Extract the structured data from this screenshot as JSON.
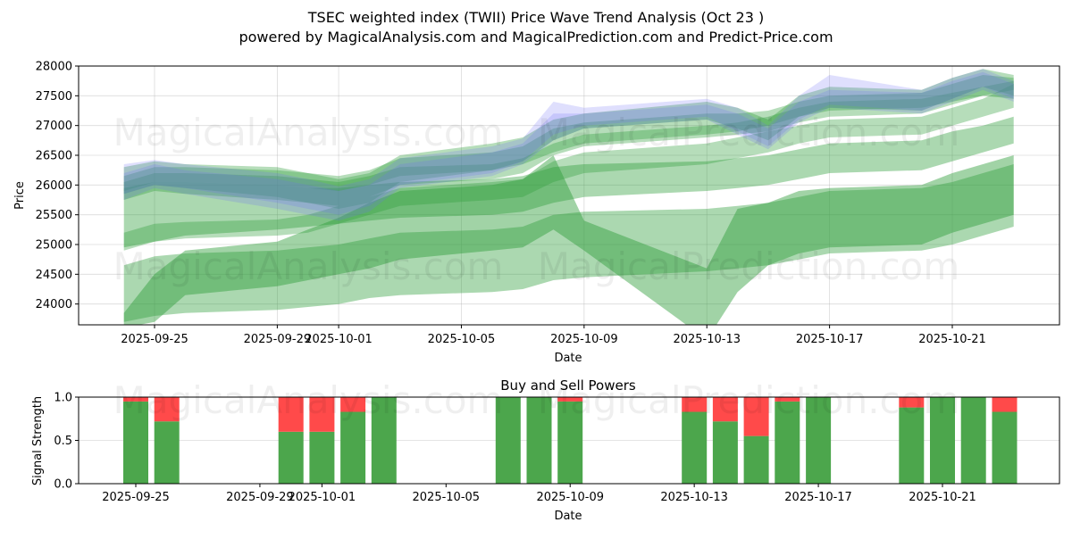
{
  "title_line1": "TSEC weighted index (TWII) Price Wave Trend Analysis (Oct 23 )",
  "title_line2": "powered by MagicalAnalysis.com and MagicalPrediction.com and Predict-Price.com",
  "watermarks": [
    "MagicalAnalysis.com",
    "MagicalPrediction.com"
  ],
  "colors": {
    "band_green": "#2e9e3a",
    "band_blue": "#6e6ef5",
    "buy": "#4ca64c",
    "sell": "#ff4a4a"
  },
  "chart_data": [
    {
      "type": "area",
      "title": "",
      "xlabel": "Date",
      "ylabel": "Price",
      "ylim": [
        23650,
        28000
      ],
      "xlim": [
        "2025-09-23",
        "2025-10-24"
      ],
      "grid": true,
      "yticks": [
        24000,
        24500,
        25000,
        25500,
        26000,
        26500,
        27000,
        27500,
        28000
      ],
      "xticks": [
        "2025-09-25",
        "2025-09-29",
        "2025-10-01",
        "2025-10-05",
        "2025-10-09",
        "2025-10-13",
        "2025-10-17",
        "2025-10-21"
      ],
      "dates": [
        "2025-09-24",
        "2025-09-25",
        "2025-09-26",
        "2025-09-29",
        "2025-09-30",
        "2025-10-01",
        "2025-10-02",
        "2025-10-03",
        "2025-10-06",
        "2025-10-07",
        "2025-10-08",
        "2025-10-09",
        "2025-10-13",
        "2025-10-14",
        "2025-10-15",
        "2025-10-16",
        "2025-10-17",
        "2025-10-20",
        "2025-10-21",
        "2025-10-22",
        "2025-10-23"
      ],
      "blue_bands": [
        {
          "name": "wave-blue-1",
          "upper": [
            26350,
            26420,
            26350,
            26200,
            26100,
            25980,
            26100,
            26450,
            26650,
            26780,
            27400,
            27300,
            27450,
            27300,
            27000,
            27500,
            27850,
            27600,
            27800,
            27950,
            27750
          ],
          "lower": [
            25750,
            25950,
            25850,
            25600,
            25500,
            25400,
            25550,
            25950,
            26150,
            26350,
            26750,
            26950,
            27100,
            26850,
            26600,
            27050,
            27300,
            27200,
            27400,
            27600,
            27400
          ]
        },
        {
          "name": "wave-blue-2",
          "upper": [
            26200,
            26350,
            26250,
            26100,
            26000,
            25900,
            26000,
            26350,
            26550,
            26700,
            27200,
            27200,
            27350,
            27200,
            26950,
            27400,
            27600,
            27550,
            27750,
            27900,
            27700
          ],
          "lower": [
            25850,
            26000,
            25950,
            25700,
            25600,
            25500,
            25650,
            26000,
            26200,
            26400,
            26850,
            27000,
            27150,
            26900,
            26650,
            27100,
            27350,
            27250,
            27450,
            27650,
            27450
          ]
        }
      ],
      "green_bands": [
        {
          "name": "wave-green-1",
          "upper": [
            26300,
            26400,
            26350,
            26300,
            26200,
            26100,
            26200,
            26500,
            26700,
            26800,
            27100,
            27200,
            27400,
            27300,
            27100,
            27500,
            27650,
            27600,
            27800,
            27950,
            27850
          ],
          "lower": [
            25850,
            26000,
            25950,
            25800,
            25700,
            25600,
            25700,
            26050,
            26250,
            26400,
            26750,
            26950,
            27100,
            26950,
            26750,
            27150,
            27300,
            27250,
            27450,
            27650,
            27500
          ]
        },
        {
          "name": "wave-green-2",
          "upper": [
            26150,
            26300,
            26300,
            26250,
            26200,
            26150,
            26250,
            26450,
            26550,
            26650,
            26950,
            27050,
            27200,
            27200,
            27250,
            27400,
            27500,
            27550,
            27700,
            27850,
            27800
          ],
          "lower": [
            25750,
            25900,
            25850,
            25750,
            25700,
            25650,
            25800,
            26000,
            26100,
            26200,
            26500,
            26650,
            26800,
            26850,
            26900,
            27050,
            27150,
            27200,
            27350,
            27500,
            27450
          ]
        },
        {
          "name": "wave-green-3",
          "upper": [
            26050,
            26200,
            26200,
            26150,
            26100,
            26050,
            26150,
            26300,
            26350,
            26450,
            26700,
            26850,
            27000,
            27050,
            27150,
            27300,
            27400,
            27450,
            27550,
            27650,
            27750
          ],
          "lower": [
            25900,
            26050,
            26050,
            26000,
            25950,
            25900,
            26000,
            26150,
            26250,
            26350,
            26550,
            26700,
            26850,
            26900,
            27000,
            27150,
            27250,
            27300,
            27400,
            27500,
            27600
          ]
        },
        {
          "name": "wave-green-4",
          "upper": [
            25200,
            25350,
            25380,
            25420,
            25500,
            25650,
            25800,
            25950,
            26050,
            26100,
            26400,
            26550,
            26700,
            26800,
            26900,
            27000,
            27100,
            27150,
            27300,
            27450,
            27700
          ],
          "lower": [
            24900,
            25050,
            25100,
            25150,
            25200,
            25350,
            25500,
            25650,
            25750,
            25800,
            26050,
            26200,
            26350,
            26450,
            26550,
            26700,
            26800,
            26850,
            27000,
            27150,
            27300
          ]
        },
        {
          "name": "wave-green-5",
          "upper": [
            25950,
            26050,
            26050,
            26000,
            25950,
            25950,
            26000,
            26050,
            26100,
            26150,
            26300,
            26350,
            26400,
            26450,
            26500,
            26600,
            26700,
            26750,
            26900,
            27000,
            27150
          ],
          "lower": [
            24950,
            25050,
            25150,
            25250,
            25300,
            25350,
            25400,
            25450,
            25500,
            25550,
            25700,
            25800,
            25900,
            25950,
            26000,
            26100,
            26200,
            26250,
            26400,
            26550,
            26700
          ]
        },
        {
          "name": "wave-green-6",
          "upper": [
            24650,
            24800,
            24850,
            24900,
            24950,
            25000,
            25100,
            25200,
            25250,
            25300,
            25500,
            25550,
            25600,
            25650,
            25700,
            25800,
            25900,
            25950,
            26050,
            26200,
            26350
          ]
        },
        {
          "name": "wave-green-7",
          "upper": [
            24650,
            24800,
            24850,
            24900,
            24950,
            25000,
            25100,
            25200,
            25250,
            25300,
            25500,
            25550,
            25600,
            25650,
            25700,
            25800,
            25900,
            25950,
            26050,
            26200,
            26350
          ],
          "lower": [
            23700,
            23800,
            23850,
            23900,
            23950,
            24000,
            24100,
            24150,
            24200,
            24250,
            24400,
            24450,
            24550,
            24600,
            24650,
            24750,
            24850,
            24900,
            25000,
            25150,
            25300
          ]
        },
        {
          "name": "wave-green-8",
          "upper": [
            23850,
            24500,
            24900,
            25050,
            25250,
            25450,
            25700,
            25900,
            26000,
            26100,
            26500,
            25400,
            24600,
            25600,
            25700,
            25900,
            25950,
            26000,
            26200,
            26350,
            26500
          ],
          "lower": [
            23600,
            23700,
            24150,
            24300,
            24400,
            24500,
            24600,
            24750,
            24900,
            24950,
            25250,
            24900,
            23400,
            24200,
            24650,
            24850,
            24950,
            25000,
            25200,
            25350,
            25500
          ]
        }
      ]
    },
    {
      "type": "bar",
      "title": "Buy and Sell Powers",
      "xlabel": "Date",
      "ylabel": "Signal Strength",
      "ylim": [
        0,
        1
      ],
      "yticks": [
        "0.0",
        "0.5",
        "1.0"
      ],
      "xticks": [
        "2025-09-25",
        "2025-09-29",
        "2025-10-01",
        "2025-10-05",
        "2025-10-09",
        "2025-10-13",
        "2025-10-17",
        "2025-10-21"
      ],
      "grid": true,
      "categories": [
        "2025-09-25",
        "2025-09-26",
        "2025-09-30",
        "2025-10-01",
        "2025-10-02",
        "2025-10-03",
        "2025-10-07",
        "2025-10-08",
        "2025-10-09",
        "2025-10-13",
        "2025-10-14",
        "2025-10-15",
        "2025-10-16",
        "2025-10-17",
        "2025-10-20",
        "2025-10-21",
        "2025-10-22",
        "2025-10-23"
      ],
      "series": [
        {
          "name": "Buy",
          "values": [
            0.95,
            0.72,
            0.6,
            0.6,
            0.83,
            1.0,
            1.0,
            1.0,
            0.95,
            0.83,
            0.72,
            0.55,
            0.95,
            1.0,
            0.88,
            1.0,
            1.0,
            0.83
          ]
        },
        {
          "name": "Sell",
          "values": [
            0.05,
            0.28,
            0.4,
            0.4,
            0.17,
            0.0,
            0.0,
            0.0,
            0.05,
            0.17,
            0.28,
            0.45,
            0.05,
            0.0,
            0.12,
            0.0,
            0.0,
            0.17
          ]
        }
      ]
    }
  ]
}
